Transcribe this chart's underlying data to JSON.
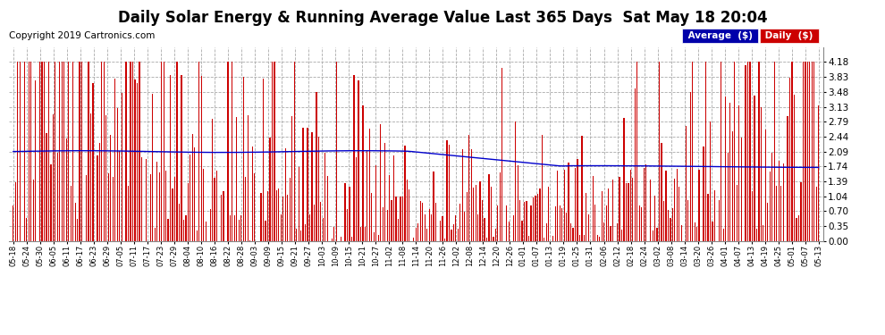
{
  "title": "Daily Solar Energy & Running Average Value Last 365 Days  Sat May 18 20:04",
  "copyright": "Copyright 2019 Cartronics.com",
  "ylim": [
    0.0,
    4.53
  ],
  "yticks": [
    0.0,
    0.35,
    0.7,
    1.04,
    1.39,
    1.74,
    2.09,
    2.44,
    2.79,
    3.13,
    3.48,
    3.83,
    4.18
  ],
  "bar_color": "#cc0000",
  "avg_color": "#0000cc",
  "background_color": "#ffffff",
  "grid_color": "#aaaaaa",
  "title_fontsize": 12,
  "copyright_fontsize": 7.5,
  "legend_avg_bg": "#0000aa",
  "legend_daily_bg": "#cc0000",
  "n_bars": 365,
  "x_labels": [
    "05-18",
    "05-24",
    "05-30",
    "06-05",
    "06-11",
    "06-17",
    "06-23",
    "06-29",
    "07-05",
    "07-11",
    "07-17",
    "07-23",
    "07-29",
    "08-04",
    "08-10",
    "08-16",
    "08-22",
    "08-28",
    "09-03",
    "09-09",
    "09-15",
    "09-21",
    "09-27",
    "10-03",
    "10-09",
    "10-15",
    "10-21",
    "10-27",
    "11-02",
    "11-08",
    "11-14",
    "11-20",
    "11-26",
    "12-02",
    "12-08",
    "12-14",
    "12-20",
    "12-26",
    "01-01",
    "01-07",
    "01-13",
    "01-19",
    "01-25",
    "01-31",
    "02-06",
    "02-12",
    "02-18",
    "02-24",
    "03-02",
    "03-08",
    "03-14",
    "03-20",
    "03-26",
    "04-01",
    "04-07",
    "04-13",
    "04-19",
    "04-25",
    "05-01",
    "05-07",
    "05-13"
  ]
}
